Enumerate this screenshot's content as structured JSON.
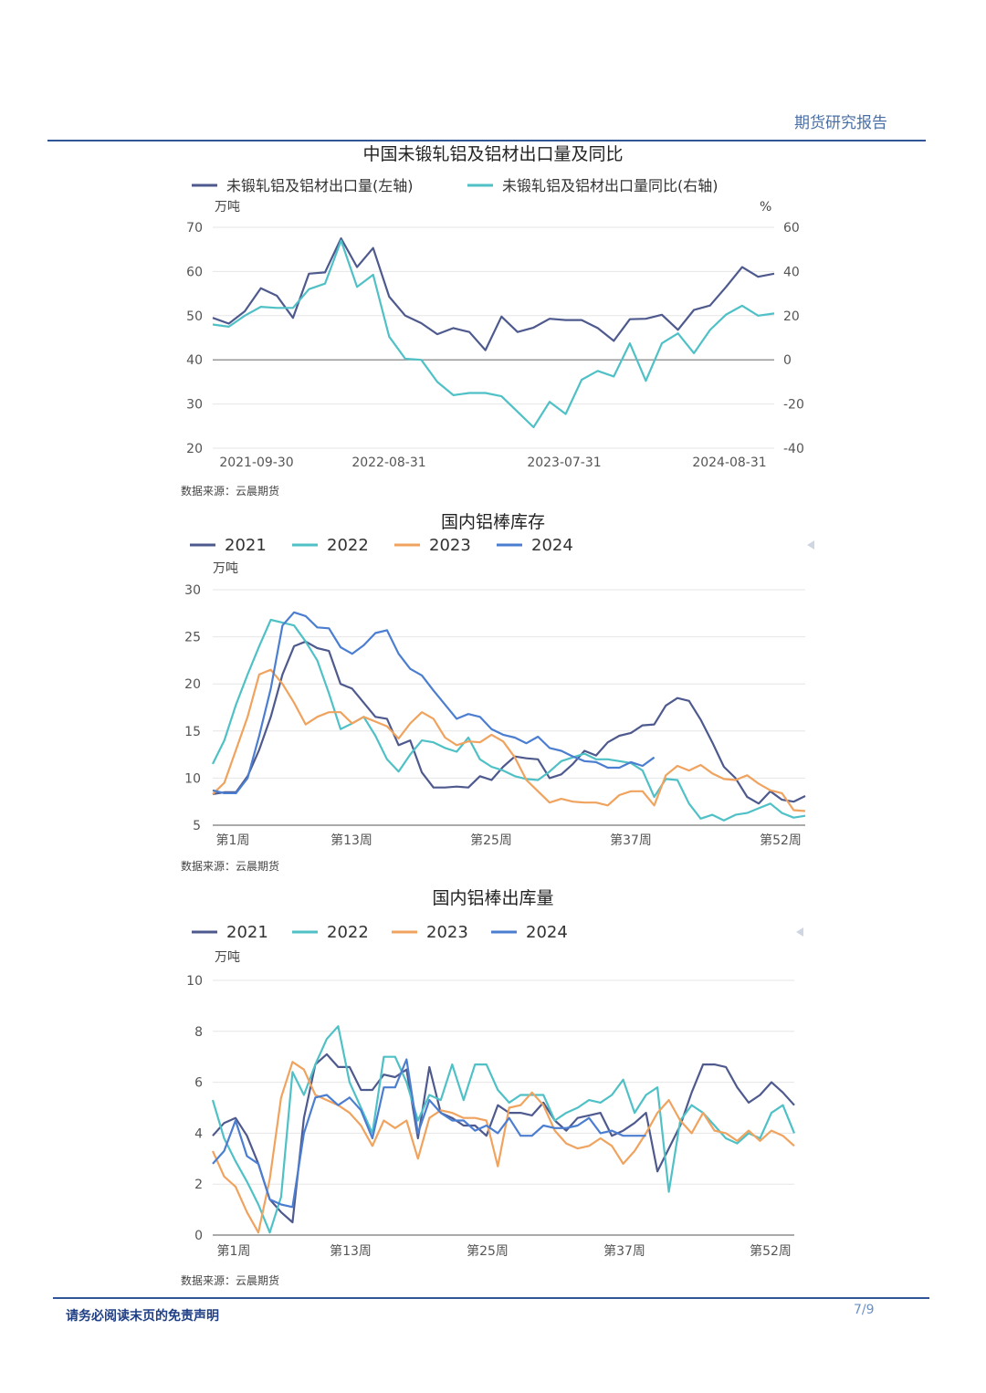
{
  "header": {
    "title": "期货研究报告"
  },
  "footer": {
    "disclaimer": "请务必阅读末页的免责声明",
    "page": "7/9"
  },
  "source_label": "数据来源：云晨期货",
  "chart_data": [
    {
      "type": "line",
      "title": "中国未锻轧铝及铝材出口量及同比",
      "y_unit_left": "万吨",
      "y_unit_right": "%",
      "ylim": [
        20,
        70
      ],
      "ylim_right": [
        -40,
        60
      ],
      "yticks": [
        "70",
        "60",
        "50",
        "40",
        "30",
        "20"
      ],
      "yticks_right": [
        "60",
        "40",
        "20",
        "0",
        "-20",
        "-40"
      ],
      "x_tick_labels": [
        "2021-09-30",
        "2022-08-31",
        "2023-07-31",
        "2024-08-31"
      ],
      "x_tick_index": [
        0,
        11,
        22,
        33
      ],
      "legend_position": "top",
      "series": [
        {
          "name": "未锻轧铝及铝材出口量(左轴)",
          "color": "#4e5a8e",
          "axis": "left",
          "values": [
            49.5,
            48.2,
            51,
            56.2,
            54.5,
            49.5,
            59.5,
            59.8,
            67.5,
            61,
            65.3,
            54.3,
            50,
            48.3,
            45.8,
            47.2,
            46.3,
            42.2,
            49.8,
            46.3,
            47.3,
            49.3,
            49,
            49,
            47.2,
            44.3,
            49.2,
            49.3,
            50.2,
            46.8,
            51.3,
            52.3,
            56.5,
            61,
            58.8,
            59.5
          ]
        },
        {
          "name": "未锻轧铝及铝材出口量同比(右轴)",
          "color": "#4fc1c6",
          "axis": "right",
          "values": [
            16,
            15,
            20,
            24,
            23.5,
            23.5,
            32,
            34.5,
            54,
            33,
            38.5,
            10.5,
            0.5,
            0,
            -10,
            -16,
            -15,
            -15,
            -16.5,
            -23.5,
            -30.5,
            -19,
            -24.5,
            -9,
            -5,
            -7.5,
            7.5,
            -9.5,
            7.5,
            12,
            3,
            13.5,
            20.5,
            24.5,
            20,
            21
          ]
        }
      ]
    },
    {
      "type": "line",
      "title": "国内铝棒库存",
      "y_unit": "万吨",
      "ylim": [
        5,
        30
      ],
      "yticks": [
        "30",
        "25",
        "20",
        "15",
        "10",
        "5"
      ],
      "x_tick_labels": [
        "第1周",
        "第13周",
        "第25周",
        "第37周",
        "第52周"
      ],
      "x_tick_index": [
        0,
        12,
        24,
        36,
        51
      ],
      "legend_position": "top",
      "series": [
        {
          "name": "2021",
          "color": "#4e5a8e",
          "values": [
            8.3,
            8.5,
            8.5,
            10.2,
            13,
            16.5,
            21,
            24,
            24.5,
            23.8,
            23.5,
            20,
            19.5,
            18,
            16.5,
            16.3,
            13.5,
            14,
            10.6,
            9,
            9,
            9.1,
            9,
            10.2,
            9.8,
            11.2,
            12.3,
            12.1,
            12,
            10,
            10.4,
            11.5,
            12.9,
            12.4,
            13.8,
            14.5,
            14.8,
            15.6,
            15.7,
            17.7,
            18.5,
            18.2,
            16.2,
            13.8,
            11.2,
            10,
            8,
            7.3,
            8.6,
            7.7,
            7.5,
            8.1
          ]
        },
        {
          "name": "2022",
          "color": "#4fc1c6",
          "values": [
            11.5,
            14,
            17.8,
            21,
            24,
            26.8,
            26.5,
            26.2,
            24.5,
            22.5,
            19,
            15.2,
            15.8,
            16.5,
            14.5,
            12,
            10.7,
            12.5,
            14,
            13.8,
            13.2,
            12.8,
            14.3,
            12,
            11.2,
            10.8,
            10.2,
            9.9,
            9.8,
            10.7,
            11.8,
            12.2,
            12.6,
            12,
            12,
            11.8,
            11.6,
            10.8,
            8,
            9.9,
            9.8,
            7.3,
            5.7,
            6.1,
            5.5,
            6.1,
            6.3,
            6.8,
            7.3,
            6.3,
            5.8,
            6
          ]
        },
        {
          "name": "2023",
          "color": "#f0a35e",
          "values": [
            8.3,
            9.5,
            13,
            16.5,
            21,
            21.5,
            20,
            18,
            15.7,
            16.5,
            17,
            17,
            15.8,
            16.5,
            16,
            15.5,
            14.2,
            15.8,
            17,
            16.3,
            14.3,
            13.5,
            13.9,
            13.8,
            14.6,
            13.9,
            12.2,
            9.8,
            8.6,
            7.4,
            7.8,
            7.5,
            7.4,
            7.4,
            7.1,
            8.2,
            8.6,
            8.6,
            7.1,
            10.3,
            11.3,
            10.8,
            11.4,
            10.5,
            9.9,
            9.8,
            10.3,
            9.4,
            8.7,
            8.4,
            6.6,
            6.5
          ]
        },
        {
          "name": "2024",
          "color": "#4b7ed0",
          "values": [
            8.7,
            8.4,
            8.4,
            10,
            14.5,
            19.5,
            26.2,
            27.6,
            27.2,
            26,
            25.9,
            23.9,
            23.2,
            24.1,
            25.4,
            25.7,
            23.2,
            21.6,
            20.9,
            19.3,
            17.8,
            16.3,
            16.8,
            16.5,
            15.2,
            14.6,
            14.3,
            13.7,
            14.4,
            13.2,
            12.9,
            12.3,
            11.8,
            11.7,
            11.1,
            11.1,
            11.7,
            11.3,
            12.2
          ]
        }
      ]
    },
    {
      "type": "line",
      "title": "国内铝棒出库量",
      "y_unit": "万吨",
      "ylim": [
        0,
        10
      ],
      "yticks": [
        "10",
        "8",
        "6",
        "4",
        "2",
        "0"
      ],
      "x_tick_labels": [
        "第1周",
        "第13周",
        "第25周",
        "第37周",
        "第52周"
      ],
      "x_tick_index": [
        0,
        12,
        24,
        36,
        51
      ],
      "legend_position": "top",
      "series": [
        {
          "name": "2021",
          "color": "#4e5a8e",
          "values": [
            3.9,
            4.4,
            4.6,
            3.9,
            2.8,
            1.4,
            0.9,
            0.5,
            4.6,
            6.7,
            7.1,
            6.6,
            6.6,
            5.7,
            5.7,
            6.3,
            6.2,
            6.5,
            3.8,
            6.6,
            4.8,
            4.6,
            4.3,
            4.3,
            3.9,
            5.1,
            4.8,
            4.8,
            4.7,
            5.2,
            4.5,
            4.1,
            4.6,
            4.7,
            4.8,
            3.9,
            4.1,
            4.4,
            4.8,
            2.5,
            3.4,
            4.3,
            5.6,
            6.7,
            6.7,
            6.6,
            5.8,
            5.2,
            5.5,
            6.0,
            5.6,
            5.1
          ]
        },
        {
          "name": "2022",
          "color": "#4fc1c6",
          "values": [
            5.3,
            3.8,
            2.9,
            2.1,
            1.2,
            0.1,
            1.5,
            6.4,
            5.5,
            6.7,
            7.7,
            8.2,
            6.0,
            5.0,
            4.0,
            7.0,
            7.0,
            6.0,
            4.5,
            5.5,
            5.3,
            6.7,
            5.3,
            6.7,
            6.7,
            5.7,
            5.2,
            5.5,
            5.5,
            5.5,
            4.5,
            4.8,
            5.0,
            5.3,
            5.2,
            5.5,
            6.1,
            4.8,
            5.5,
            5.8,
            1.7,
            4.5,
            5.1,
            4.8,
            4.3,
            3.8,
            3.6,
            4.0,
            3.8,
            4.8,
            5.1,
            4.0
          ]
        },
        {
          "name": "2023",
          "color": "#f0a35e",
          "values": [
            3.3,
            2.3,
            1.9,
            0.9,
            0.1,
            2.2,
            5.4,
            6.8,
            6.5,
            5.5,
            5.3,
            5.1,
            4.8,
            4.3,
            3.5,
            4.5,
            4.2,
            4.5,
            3.0,
            4.6,
            4.9,
            4.8,
            4.6,
            4.6,
            4.5,
            2.7,
            5.0,
            5.1,
            5.6,
            5.1,
            4.1,
            3.6,
            3.4,
            3.5,
            3.8,
            3.5,
            2.8,
            3.3,
            4.0,
            4.8,
            5.3,
            4.5,
            4.0,
            4.8,
            4.1,
            4.0,
            3.7,
            4.1,
            3.7,
            4.1,
            3.9,
            3.5
          ]
        },
        {
          "name": "2024",
          "color": "#4b7ed0",
          "values": [
            2.8,
            3.3,
            4.5,
            3.1,
            2.8,
            1.4,
            1.2,
            1.1,
            4.0,
            5.4,
            5.5,
            5.1,
            5.4,
            4.9,
            3.8,
            5.8,
            5.8,
            6.9,
            4.0,
            5.3,
            4.8,
            4.5,
            4.5,
            4.1,
            4.3,
            4.0,
            4.6,
            3.9,
            3.9,
            4.3,
            4.2,
            4.2,
            4.3,
            4.6,
            4.0,
            4.1,
            3.9,
            3.9,
            3.9
          ]
        }
      ]
    }
  ]
}
